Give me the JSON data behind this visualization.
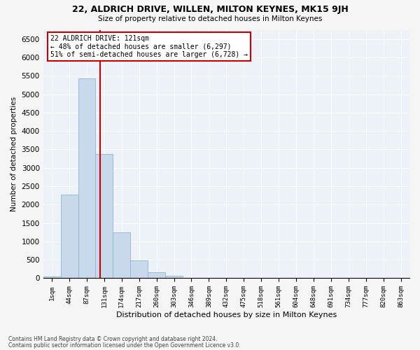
{
  "title1": "22, ALDRICH DRIVE, WILLEN, MILTON KEYNES, MK15 9JH",
  "title2": "Size of property relative to detached houses in Milton Keynes",
  "xlabel": "Distribution of detached houses by size in Milton Keynes",
  "ylabel": "Number of detached properties",
  "footnote1": "Contains HM Land Registry data © Crown copyright and database right 2024.",
  "footnote2": "Contains public sector information licensed under the Open Government Licence v3.0.",
  "annotation_title": "22 ALDRICH DRIVE: 121sqm",
  "annotation_line1": "← 48% of detached houses are smaller (6,297)",
  "annotation_line2": "51% of semi-detached houses are larger (6,728) →",
  "bar_labels": [
    "1sqm",
    "44sqm",
    "87sqm",
    "131sqm",
    "174sqm",
    "217sqm",
    "260sqm",
    "303sqm",
    "346sqm",
    "389sqm",
    "432sqm",
    "475sqm",
    "518sqm",
    "561sqm",
    "604sqm",
    "648sqm",
    "691sqm",
    "734sqm",
    "777sqm",
    "820sqm",
    "863sqm"
  ],
  "bar_values": [
    50,
    2280,
    5430,
    3380,
    1250,
    490,
    155,
    58,
    12,
    3,
    1,
    0,
    0,
    0,
    0,
    0,
    0,
    0,
    0,
    0,
    0
  ],
  "bar_color": "#c9d9ec",
  "bar_edge_color": "#8fb4d4",
  "ylim": [
    0,
    6750
  ],
  "yticks": [
    0,
    500,
    1000,
    1500,
    2000,
    2500,
    3000,
    3500,
    4000,
    4500,
    5000,
    5500,
    6000,
    6500
  ],
  "bg_color": "#edf2f9",
  "grid_color": "#ffffff",
  "annotation_box_color": "#ffffff",
  "annotation_box_edge": "#cc0000",
  "red_line_color": "#cc0000",
  "fig_bg_color": "#f5f5f5"
}
